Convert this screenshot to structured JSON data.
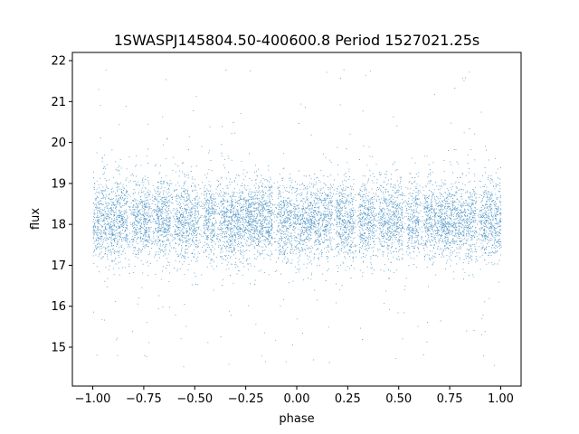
{
  "chart_data": {
    "type": "scatter",
    "title": "1SWASPJ145804.50-400600.8 Period 1527021.25s",
    "xlabel": "phase",
    "ylabel": "flux",
    "xlim": [
      -1.1,
      1.1
    ],
    "ylim": [
      14.05,
      22.2
    ],
    "xticks": [
      -1.0,
      -0.75,
      -0.5,
      -0.25,
      0.0,
      0.25,
      0.5,
      0.75,
      1.0
    ],
    "xtick_labels": [
      "−1.00",
      "−0.75",
      "−0.50",
      "−0.25",
      "0.00",
      "0.25",
      "0.50",
      "0.75",
      "1.00"
    ],
    "yticks": [
      15,
      16,
      17,
      18,
      19,
      20,
      21,
      22
    ],
    "ytick_labels": [
      "15",
      "16",
      "17",
      "18",
      "19",
      "20",
      "21",
      "22"
    ],
    "grid": false,
    "series": [
      {
        "color": "#1f77b4",
        "point_count": 9000,
        "x_range": [
          -1.0,
          1.0
        ],
        "y_median": 18.1,
        "y_core_range": [
          17.1,
          19.1
        ],
        "y_full_range": [
          14.5,
          21.8
        ],
        "summary": "Dense band of points centered near flux 18, spanning phase -1 to 1, with sparse outliers from about 14.5 to 21.8; the pattern repeats with period 1 in phase."
      }
    ]
  },
  "colors": {
    "points": "#1f77b4",
    "axes": "#000000",
    "background": "#ffffff"
  }
}
